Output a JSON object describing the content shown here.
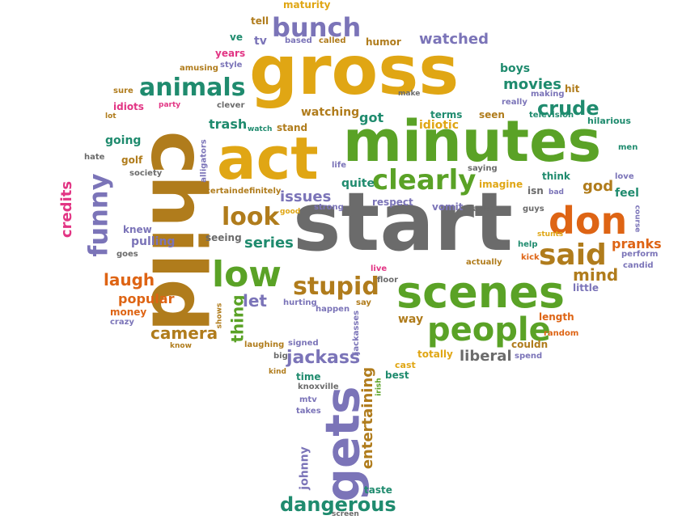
{
  "palette": {
    "gold": "#e0a614",
    "green": "#5aa226",
    "gray": "#6b6b6b",
    "brown": "#b07c1c",
    "purple": "#7b74b8",
    "orange": "#de6414",
    "teal": "#1f8b6e",
    "pink": "#e23584",
    "olive": "#8a8a2a"
  },
  "words": [
    {
      "text": "gross",
      "color": "gold"
    },
    {
      "text": "minutes",
      "color": "green"
    },
    {
      "text": "act",
      "color": "gold"
    },
    {
      "text": "start",
      "color": "gray"
    },
    {
      "text": "child",
      "color": "brown"
    },
    {
      "text": "scenes",
      "color": "green"
    },
    {
      "text": "don",
      "color": "orange"
    },
    {
      "text": "gets",
      "color": "purple"
    },
    {
      "text": "people",
      "color": "green"
    },
    {
      "text": "clearly",
      "color": "green"
    },
    {
      "text": "low",
      "color": "green"
    },
    {
      "text": "said",
      "color": "brown"
    },
    {
      "text": "animals",
      "color": "teal"
    },
    {
      "text": "bunch",
      "color": "purple"
    },
    {
      "text": "look",
      "color": "brown"
    },
    {
      "text": "funny",
      "color": "purple"
    },
    {
      "text": "stupid",
      "color": "brown"
    },
    {
      "text": "crude",
      "color": "teal"
    },
    {
      "text": "jackass",
      "color": "purple"
    },
    {
      "text": "dangerous",
      "color": "teal"
    },
    {
      "text": "entertaining",
      "color": "brown"
    },
    {
      "text": "credits",
      "color": "pink"
    },
    {
      "text": "thing",
      "color": "green"
    },
    {
      "text": "series",
      "color": "teal"
    },
    {
      "text": "laugh",
      "color": "orange"
    },
    {
      "text": "camera",
      "color": "brown"
    },
    {
      "text": "movies",
      "color": "teal"
    },
    {
      "text": "watched",
      "color": "purple"
    },
    {
      "text": "issues",
      "color": "purple"
    },
    {
      "text": "liberal",
      "color": "gray"
    },
    {
      "text": "mind",
      "color": "brown"
    },
    {
      "text": "pranks",
      "color": "orange"
    },
    {
      "text": "let",
      "color": "purple"
    },
    {
      "text": "god",
      "color": "brown"
    },
    {
      "text": "feel",
      "color": "teal"
    },
    {
      "text": "way",
      "color": "brown"
    },
    {
      "text": "popular",
      "color": "orange"
    },
    {
      "text": "trash",
      "color": "teal"
    },
    {
      "text": "going",
      "color": "teal"
    },
    {
      "text": "watching",
      "color": "brown"
    },
    {
      "text": "got",
      "color": "teal"
    },
    {
      "text": "quite",
      "color": "teal"
    },
    {
      "text": "idiotic",
      "color": "gold"
    },
    {
      "text": "imagine",
      "color": "gold"
    },
    {
      "text": "boys",
      "color": "teal"
    },
    {
      "text": "vomit",
      "color": "purple"
    },
    {
      "text": "respect",
      "color": "purple"
    },
    {
      "text": "pulling",
      "color": "purple"
    },
    {
      "text": "johnny",
      "color": "purple"
    },
    {
      "text": "knew",
      "color": "purple"
    },
    {
      "text": "seeing",
      "color": "gray"
    },
    {
      "text": "years",
      "color": "pink"
    },
    {
      "text": "tv",
      "color": "purple"
    },
    {
      "text": "ve",
      "color": "teal"
    },
    {
      "text": "maturity",
      "color": "gold"
    },
    {
      "text": "tell",
      "color": "brown"
    },
    {
      "text": "humor",
      "color": "brown"
    },
    {
      "text": "terms",
      "color": "teal"
    },
    {
      "text": "seen",
      "color": "brown"
    },
    {
      "text": "hit",
      "color": "brown"
    },
    {
      "text": "think",
      "color": "teal"
    },
    {
      "text": "golf",
      "color": "brown"
    },
    {
      "text": "idiots",
      "color": "pink"
    },
    {
      "text": "money",
      "color": "orange"
    },
    {
      "text": "length",
      "color": "orange"
    },
    {
      "text": "couldn",
      "color": "brown"
    },
    {
      "text": "little",
      "color": "purple"
    },
    {
      "text": "time",
      "color": "teal"
    },
    {
      "text": "taste",
      "color": "teal"
    },
    {
      "text": "best",
      "color": "teal"
    },
    {
      "text": "totally",
      "color": "gold"
    },
    {
      "text": "cast",
      "color": "gold"
    },
    {
      "text": "hilarious",
      "color": "teal"
    },
    {
      "text": "television",
      "color": "teal"
    },
    {
      "text": "really",
      "color": "purple"
    },
    {
      "text": "making",
      "color": "purple"
    },
    {
      "text": "love",
      "color": "purple"
    },
    {
      "text": "men",
      "color": "teal"
    },
    {
      "text": "guys",
      "color": "gray"
    },
    {
      "text": "maybe",
      "color": "gray"
    },
    {
      "text": "saying",
      "color": "gray"
    },
    {
      "text": "life",
      "color": "purple"
    },
    {
      "text": "strong",
      "color": "purple"
    },
    {
      "text": "good",
      "color": "gold"
    },
    {
      "text": "certain",
      "color": "brown"
    },
    {
      "text": "definitely",
      "color": "brown"
    },
    {
      "text": "alligators",
      "color": "purple"
    },
    {
      "text": "society",
      "color": "gray"
    },
    {
      "text": "hate",
      "color": "gray"
    },
    {
      "text": "goes",
      "color": "gray"
    },
    {
      "text": "crazy",
      "color": "purple"
    },
    {
      "text": "shows",
      "color": "brown"
    },
    {
      "text": "know",
      "color": "brown"
    },
    {
      "text": "laughing",
      "color": "brown"
    },
    {
      "text": "signed",
      "color": "purple"
    },
    {
      "text": "big",
      "color": "gray"
    },
    {
      "text": "kind",
      "color": "brown"
    },
    {
      "text": "knoxville",
      "color": "gray"
    },
    {
      "text": "mtv",
      "color": "purple"
    },
    {
      "text": "takes",
      "color": "purple"
    },
    {
      "text": "screen",
      "color": "gray"
    },
    {
      "text": "irish",
      "color": "green"
    },
    {
      "text": "jackasses",
      "color": "purple"
    },
    {
      "text": "hurting",
      "color": "purple"
    },
    {
      "text": "happen",
      "color": "purple"
    },
    {
      "text": "say",
      "color": "brown"
    },
    {
      "text": "live",
      "color": "pink"
    },
    {
      "text": "floor",
      "color": "gray"
    },
    {
      "text": "actually",
      "color": "brown"
    },
    {
      "text": "kick",
      "color": "orange"
    },
    {
      "text": "help",
      "color": "teal"
    },
    {
      "text": "stunts",
      "color": "gold"
    },
    {
      "text": "perform",
      "color": "purple"
    },
    {
      "text": "candid",
      "color": "purple"
    },
    {
      "text": "course",
      "color": "purple"
    },
    {
      "text": "isn",
      "color": "gray"
    },
    {
      "text": "bad",
      "color": "purple"
    },
    {
      "text": "random",
      "color": "orange"
    },
    {
      "text": "spend",
      "color": "purple"
    },
    {
      "text": "amusing",
      "color": "brown"
    },
    {
      "text": "style",
      "color": "purple"
    },
    {
      "text": "sure",
      "color": "brown"
    },
    {
      "text": "lot",
      "color": "brown"
    },
    {
      "text": "party",
      "color": "pink"
    },
    {
      "text": "clever",
      "color": "gray"
    },
    {
      "text": "watch",
      "color": "teal"
    },
    {
      "text": "stand",
      "color": "brown"
    },
    {
      "text": "based",
      "color": "purple"
    },
    {
      "text": "called",
      "color": "brown"
    },
    {
      "text": "make",
      "color": "gray"
    }
  ]
}
